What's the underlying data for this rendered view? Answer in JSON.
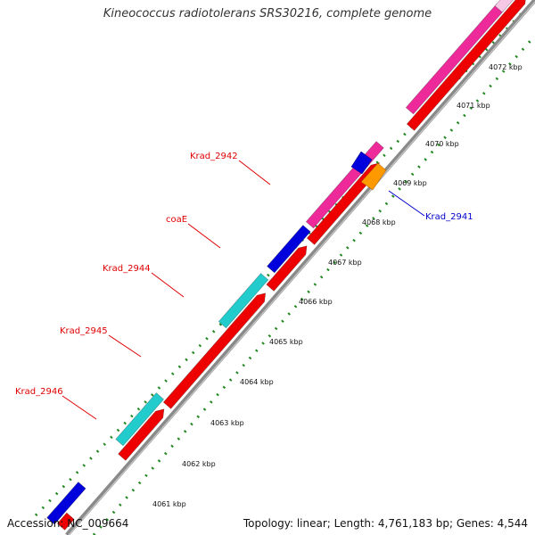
{
  "title": "Kineococcus radiotolerans SRS30216, complete genome",
  "accession": "Accession: NC_009664",
  "summary": "Topology: linear; Length: 4,761,183 bp; Genes: 4,544",
  "ticks": [
    "4061 kbp",
    "4062 kbp",
    "4063 kbp",
    "4064 kbp",
    "4065 kbp",
    "4066 kbp",
    "4067 kbp",
    "4068 kbp",
    "4069 kbp",
    "4070 kbp",
    "4071 kbp",
    "4072 kbp"
  ],
  "gene_labels": [
    {
      "text": "Krad_2942",
      "color": "#e00000"
    },
    {
      "text": "coaE",
      "color": "#e00000"
    },
    {
      "text": "Krad_2944",
      "color": "#e00000"
    },
    {
      "text": "Krad_2945",
      "color": "#e00000"
    },
    {
      "text": "Krad_2946",
      "color": "#e00000"
    },
    {
      "text": "Krad_2941",
      "color": "#0000cc"
    }
  ],
  "colors": {
    "cds": "#ee0000",
    "gene_pink": "#ee2a9a",
    "gene_cyan": "#22cccc",
    "gene_blue": "#0000dd",
    "gene_orange": "#ff9900",
    "backbone": "#888888",
    "dots": "#228822"
  }
}
